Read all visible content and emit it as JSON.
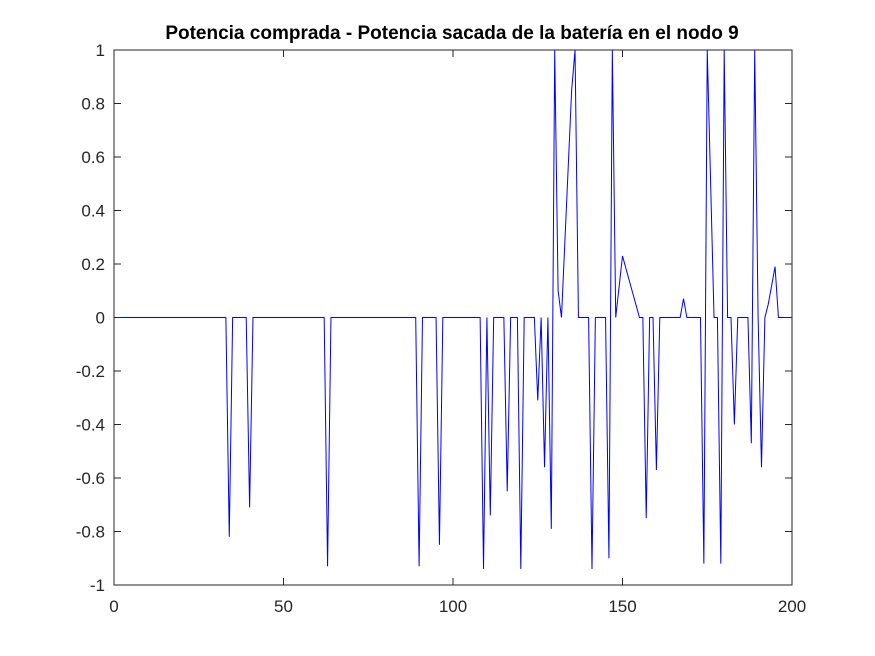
{
  "chart_data": {
    "type": "line",
    "title": "Potencia comprada - Potencia sacada de la batería en el nodo 9",
    "xlabel": "",
    "ylabel": "",
    "xlim": [
      0,
      200
    ],
    "ylim": [
      -1,
      1
    ],
    "x_ticks": [
      "0",
      "50",
      "100",
      "150",
      "200"
    ],
    "y_ticks": [
      "-1",
      "-0.8",
      "-0.6",
      "-0.4",
      "-0.2",
      "0",
      "0.2",
      "0.4",
      "0.6",
      "0.8",
      "1"
    ],
    "grid": false,
    "line_color": "#0000ff",
    "series": [
      {
        "x": [
          0,
          33,
          34,
          35,
          39,
          40,
          41,
          62,
          63,
          64,
          89,
          90,
          91,
          95,
          96,
          97,
          108,
          109,
          110,
          111,
          112,
          115,
          116,
          117,
          119,
          120,
          121,
          124,
          125,
          126,
          127,
          128,
          129,
          130,
          131,
          132,
          135,
          136,
          137,
          140,
          141,
          142,
          145,
          146,
          147,
          148,
          150,
          155,
          156,
          157,
          158,
          159,
          160,
          161,
          167,
          168,
          169,
          173,
          174,
          175,
          177,
          178,
          179,
          180,
          181,
          182,
          183,
          184,
          187,
          188,
          189,
          190,
          191,
          192,
          193,
          195,
          196,
          200
        ],
        "y": [
          0,
          0,
          -0.82,
          0,
          0,
          -0.71,
          0,
          0,
          -0.93,
          0,
          0,
          -0.93,
          0,
          0,
          -0.85,
          0,
          0,
          -0.94,
          0,
          -0.74,
          0,
          0,
          -0.65,
          0,
          0,
          -0.94,
          0,
          0,
          -0.31,
          0,
          -0.56,
          0,
          -0.79,
          1,
          0.1,
          0,
          0.85,
          1,
          0,
          0,
          -0.94,
          0,
          0,
          -0.9,
          1,
          0,
          0.23,
          0,
          0,
          -0.75,
          0,
          0,
          -0.57,
          0,
          0,
          0.07,
          0,
          0,
          -0.92,
          1,
          0,
          0,
          -0.92,
          1,
          0,
          0,
          -0.4,
          0,
          0,
          -0.47,
          1,
          0,
          -0.56,
          0,
          0.05,
          0.19,
          0,
          0
        ]
      }
    ]
  }
}
